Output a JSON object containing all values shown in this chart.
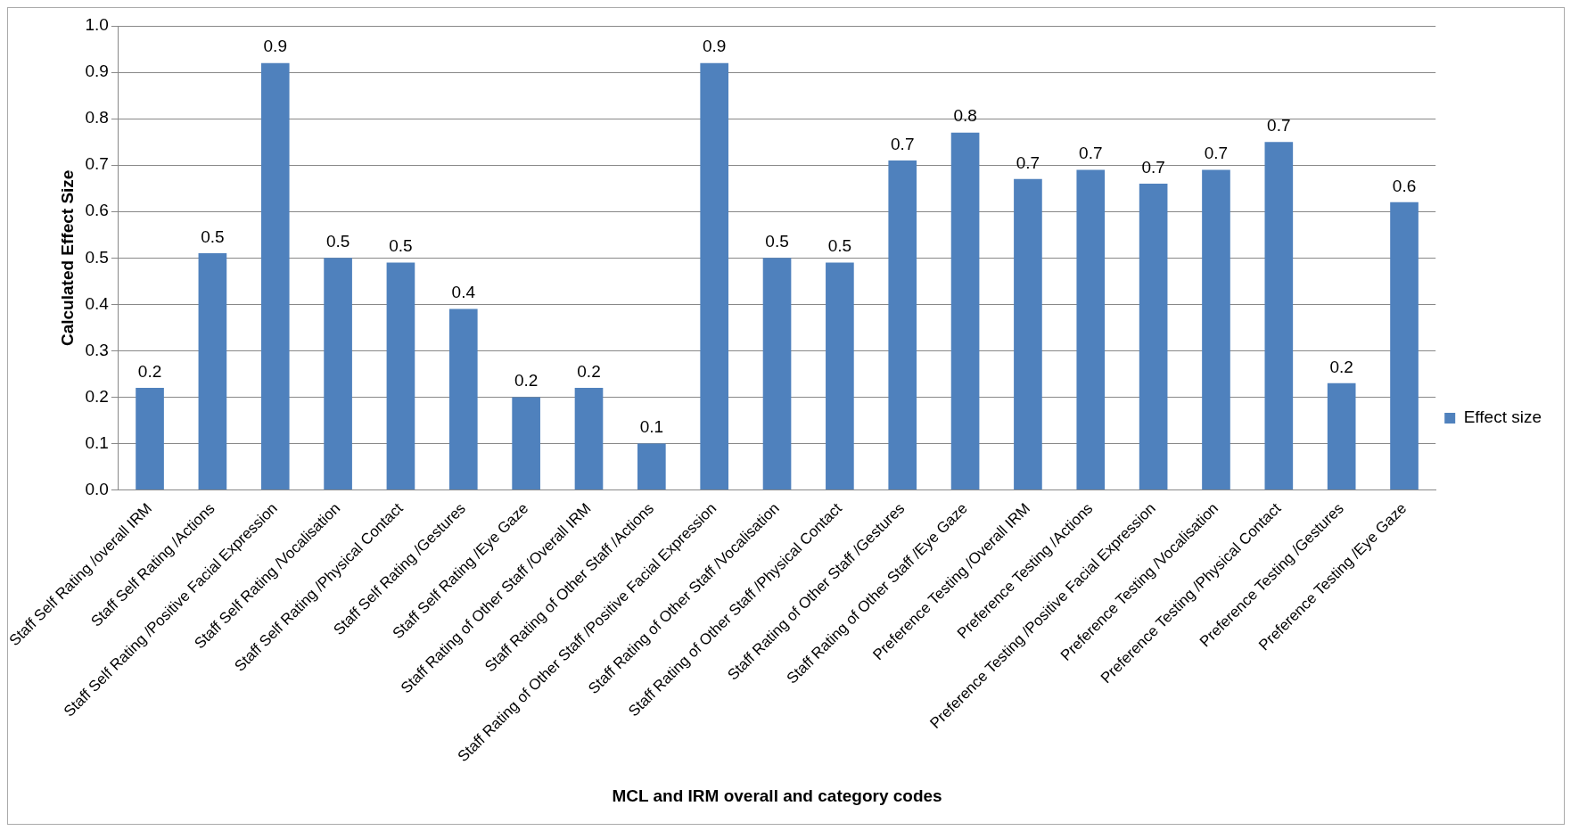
{
  "chart_data": {
    "type": "bar",
    "xlabel": "MCL and IRM overall and category codes",
    "ylabel": "Calculated Effect Size",
    "categories": [
      "Staff Self Rating /overall IRM",
      "Staff Self Rating /Actions",
      "Staff Self Rating /Positive Facial Expression",
      "Staff Self Rating /Vocalisation",
      "Staff Self Rating /Physical Contact",
      "Staff Self Rating /Gestures",
      "Staff Self Rating /Eye Gaze",
      "Staff Rating of Other Staff /Overall IRM",
      "Staff Rating of Other Staff /Actions",
      "Staff Rating of Other Staff /Positive Facial Expression",
      "Staff Rating of Other Staff /Vocalisation",
      "Staff Rating of Other Staff /Physical Contact",
      "Staff Rating of Other Staff /Gestures",
      "Staff Rating of Other Staff /Eye Gaze",
      "Preference Testing /Overall IRM",
      "Preference Testing /Actions",
      "Preference Testing /Positive Facial Expression",
      "Preference Testing /Vocalisation",
      "Preference Testing /Physical Contact",
      "Preference Testing /Gestures",
      "Preference Testing /Eye Gaze"
    ],
    "series": [
      {
        "name": "Effect size",
        "color": "#4f81bd",
        "values": [
          0.22,
          0.51,
          0.92,
          0.5,
          0.49,
          0.39,
          0.2,
          0.22,
          0.1,
          0.92,
          0.5,
          0.49,
          0.71,
          0.77,
          0.67,
          0.69,
          0.66,
          0.69,
          0.75,
          0.23,
          0.62
        ],
        "value_labels": [
          "0.2",
          "0.5",
          "0.9",
          "0.5",
          "0.5",
          "0.4",
          "0.2",
          "0.2",
          "0.1",
          "0.9",
          "0.5",
          "0.5",
          "0.7",
          "0.8",
          "0.7",
          "0.7",
          "0.7",
          "0.7",
          "0.7",
          "0.2",
          "0.6"
        ]
      }
    ],
    "ylim": [
      0,
      1
    ],
    "yticks": [
      {
        "value": 0,
        "label": "0.0"
      },
      0.1,
      0.2,
      0.3,
      0.4,
      0.5,
      0.6,
      0.7,
      0.8,
      0.9,
      {
        "value": 1,
        "label": "1.0"
      }
    ],
    "grid": "y",
    "legend": "right"
  }
}
